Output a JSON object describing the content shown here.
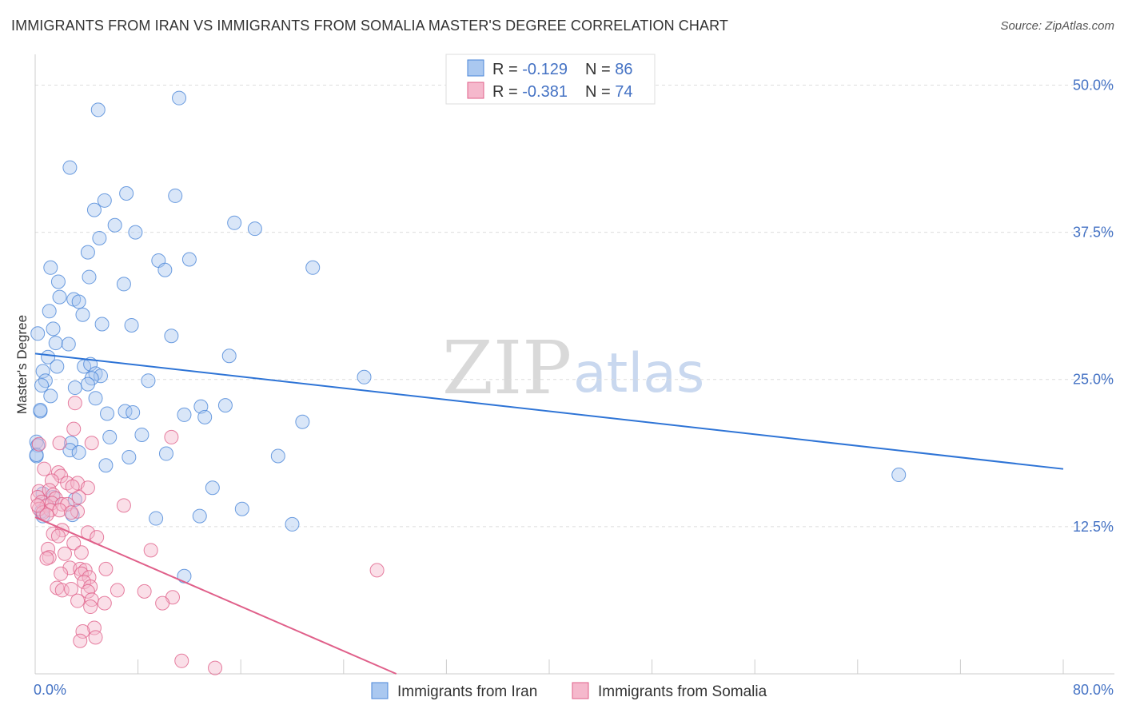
{
  "chart_data": {
    "type": "scatter",
    "title": "IMMIGRANTS FROM IRAN VS IMMIGRANTS FROM SOMALIA MASTER'S DEGREE CORRELATION CHART",
    "source": "Source: ZipAtlas.com",
    "ylabel": "Master's Degree",
    "xlim": [
      0,
      80
    ],
    "ylim": [
      0,
      52
    ],
    "x_tick_labels": [
      "0.0%",
      "80.0%"
    ],
    "y_ticks": [
      12.5,
      25.0,
      37.5,
      50.0
    ],
    "y_tick_labels": [
      "12.5%",
      "25.0%",
      "37.5%",
      "50.0%"
    ],
    "watermark": {
      "zip": "ZIP",
      "atlas": "atlas"
    },
    "colors": {
      "iran": "#4a86d8",
      "iran_fill": "#aac8f0",
      "somalia": "#e0608a",
      "somalia_fill": "#f5b8cc"
    },
    "legend": [
      {
        "r_label": "R = ",
        "r_value": "-0.129",
        "n_label": "N = ",
        "n_value": "86"
      },
      {
        "r_label": "R = ",
        "r_value": "-0.381",
        "n_label": "N = ",
        "n_value": "74"
      }
    ],
    "series": [
      {
        "name": "Immigrants from Iran",
        "trend": {
          "x": [
            0,
            80
          ],
          "y": [
            27.2,
            17.4
          ]
        },
        "points": [
          [
            4.9,
            47.9
          ],
          [
            11.2,
            48.9
          ],
          [
            2.7,
            43.0
          ],
          [
            5.4,
            40.2
          ],
          [
            7.1,
            40.8
          ],
          [
            10.9,
            40.6
          ],
          [
            4.6,
            39.4
          ],
          [
            6.2,
            38.1
          ],
          [
            7.8,
            37.5
          ],
          [
            15.5,
            38.3
          ],
          [
            17.1,
            37.8
          ],
          [
            5.0,
            37.0
          ],
          [
            4.1,
            35.8
          ],
          [
            9.6,
            35.1
          ],
          [
            12.0,
            35.2
          ],
          [
            10.1,
            34.3
          ],
          [
            1.2,
            34.5
          ],
          [
            21.6,
            34.5
          ],
          [
            4.2,
            33.7
          ],
          [
            1.8,
            33.3
          ],
          [
            6.9,
            33.1
          ],
          [
            1.9,
            32.0
          ],
          [
            3.0,
            31.8
          ],
          [
            3.4,
            31.6
          ],
          [
            1.1,
            30.8
          ],
          [
            3.7,
            30.5
          ],
          [
            0.2,
            28.9
          ],
          [
            5.2,
            29.7
          ],
          [
            7.5,
            29.6
          ],
          [
            1.4,
            29.3
          ],
          [
            1.6,
            28.1
          ],
          [
            2.6,
            28.0
          ],
          [
            10.6,
            28.7
          ],
          [
            1.0,
            26.9
          ],
          [
            15.1,
            27.0
          ],
          [
            1.7,
            26.1
          ],
          [
            3.8,
            26.1
          ],
          [
            4.3,
            26.3
          ],
          [
            0.6,
            25.7
          ],
          [
            4.7,
            25.5
          ],
          [
            5.1,
            25.3
          ],
          [
            4.4,
            25.1
          ],
          [
            0.8,
            24.9
          ],
          [
            0.5,
            24.5
          ],
          [
            8.8,
            24.9
          ],
          [
            25.6,
            25.2
          ],
          [
            3.1,
            24.3
          ],
          [
            4.1,
            24.6
          ],
          [
            1.2,
            23.6
          ],
          [
            4.7,
            23.4
          ],
          [
            12.9,
            22.7
          ],
          [
            14.8,
            22.8
          ],
          [
            0.4,
            22.3
          ],
          [
            7.0,
            22.3
          ],
          [
            7.6,
            22.2
          ],
          [
            11.6,
            22.0
          ],
          [
            13.2,
            21.8
          ],
          [
            5.6,
            22.1
          ],
          [
            20.8,
            21.4
          ],
          [
            0.4,
            22.4
          ],
          [
            8.3,
            20.3
          ],
          [
            5.8,
            20.1
          ],
          [
            0.1,
            19.7
          ],
          [
            0.2,
            19.4
          ],
          [
            2.8,
            19.6
          ],
          [
            2.7,
            19.0
          ],
          [
            3.4,
            18.8
          ],
          [
            0.1,
            18.5
          ],
          [
            10.2,
            18.7
          ],
          [
            7.3,
            18.4
          ],
          [
            18.9,
            18.5
          ],
          [
            5.5,
            17.7
          ],
          [
            67.2,
            16.9
          ],
          [
            13.8,
            15.8
          ],
          [
            0.6,
            15.3
          ],
          [
            1.4,
            15.0
          ],
          [
            3.1,
            14.8
          ],
          [
            16.1,
            14.0
          ],
          [
            0.5,
            13.8
          ],
          [
            0.6,
            13.4
          ],
          [
            2.9,
            13.5
          ],
          [
            9.4,
            13.2
          ],
          [
            12.8,
            13.4
          ],
          [
            20.0,
            12.7
          ],
          [
            11.6,
            8.3
          ],
          [
            0.1,
            18.6
          ]
        ]
      },
      {
        "name": "Immigrants from Somalia",
        "trend": {
          "x": [
            0,
            28.1
          ],
          "y": [
            13.3,
            0
          ]
        },
        "points": [
          [
            3.1,
            23.0
          ],
          [
            3.0,
            20.8
          ],
          [
            4.4,
            19.6
          ],
          [
            10.6,
            20.1
          ],
          [
            0.3,
            19.5
          ],
          [
            1.9,
            19.6
          ],
          [
            0.7,
            17.4
          ],
          [
            1.8,
            17.1
          ],
          [
            2.0,
            16.8
          ],
          [
            1.3,
            16.4
          ],
          [
            2.5,
            16.2
          ],
          [
            3.3,
            16.2
          ],
          [
            2.9,
            15.9
          ],
          [
            4.1,
            15.8
          ],
          [
            0.3,
            15.5
          ],
          [
            1.1,
            15.6
          ],
          [
            0.2,
            15.0
          ],
          [
            1.4,
            15.2
          ],
          [
            1.6,
            14.9
          ],
          [
            3.4,
            15.0
          ],
          [
            0.5,
            14.6
          ],
          [
            0.9,
            14.3
          ],
          [
            1.3,
            14.5
          ],
          [
            2.1,
            14.4
          ],
          [
            2.5,
            14.4
          ],
          [
            6.9,
            14.3
          ],
          [
            0.3,
            14.0
          ],
          [
            1.2,
            13.9
          ],
          [
            3.3,
            13.8
          ],
          [
            0.6,
            13.7
          ],
          [
            1.9,
            13.9
          ],
          [
            2.8,
            13.7
          ],
          [
            0.9,
            13.5
          ],
          [
            2.1,
            12.2
          ],
          [
            4.1,
            12.0
          ],
          [
            1.4,
            11.9
          ],
          [
            1.8,
            11.7
          ],
          [
            4.8,
            11.6
          ],
          [
            3.0,
            11.1
          ],
          [
            1.0,
            10.6
          ],
          [
            2.3,
            10.2
          ],
          [
            9.0,
            10.5
          ],
          [
            3.6,
            10.3
          ],
          [
            1.1,
            9.9
          ],
          [
            0.9,
            9.8
          ],
          [
            2.7,
            9.0
          ],
          [
            3.5,
            8.9
          ],
          [
            3.9,
            8.8
          ],
          [
            5.5,
            8.9
          ],
          [
            3.6,
            8.5
          ],
          [
            2.0,
            8.5
          ],
          [
            4.2,
            8.2
          ],
          [
            26.6,
            8.8
          ],
          [
            3.8,
            7.8
          ],
          [
            4.3,
            7.4
          ],
          [
            1.7,
            7.3
          ],
          [
            2.1,
            7.1
          ],
          [
            2.8,
            7.2
          ],
          [
            4.1,
            7.0
          ],
          [
            6.4,
            7.1
          ],
          [
            8.5,
            7.0
          ],
          [
            4.4,
            6.3
          ],
          [
            10.7,
            6.5
          ],
          [
            3.3,
            6.2
          ],
          [
            5.4,
            6.0
          ],
          [
            9.9,
            6.0
          ],
          [
            4.3,
            5.7
          ],
          [
            4.6,
            3.9
          ],
          [
            3.7,
            3.6
          ],
          [
            4.7,
            3.1
          ],
          [
            3.5,
            2.8
          ],
          [
            11.4,
            1.1
          ],
          [
            14.0,
            0.5
          ],
          [
            0.2,
            14.3
          ]
        ]
      }
    ]
  }
}
